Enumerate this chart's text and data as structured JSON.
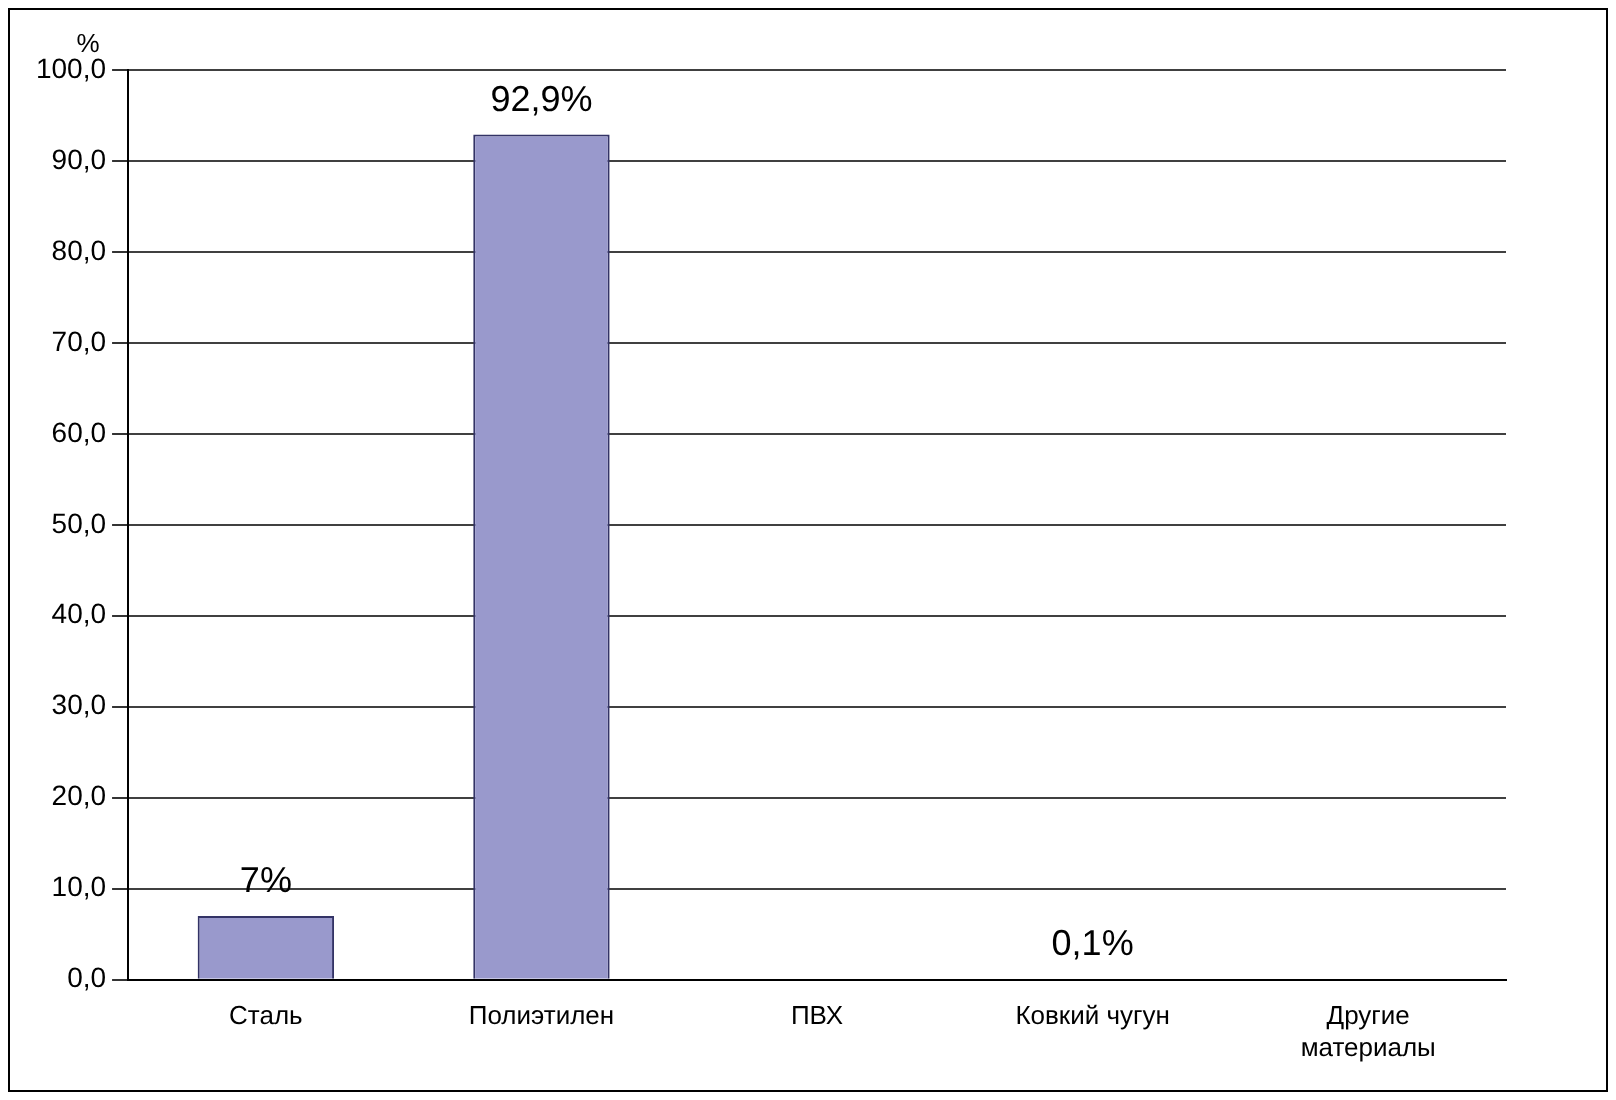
{
  "chart_data": {
    "type": "bar",
    "ylabel": "%",
    "categories": [
      "Сталь",
      "Полиэтилен",
      "ПВХ",
      "Ковкий чугун",
      "Другие материалы"
    ],
    "values": [
      7,
      92.9,
      0,
      0.1,
      0
    ],
    "value_labels": [
      "7%",
      "92,9%",
      null,
      "0,1%",
      null
    ],
    "color": "#9999cc",
    "ylim": [
      0,
      100
    ],
    "yticks": [
      {
        "value": 0,
        "label": "0,0"
      },
      {
        "value": 10,
        "label": "10,0"
      },
      {
        "value": 20,
        "label": "20,0"
      },
      {
        "value": 30,
        "label": "30,0"
      },
      {
        "value": 40,
        "label": "40,0"
      },
      {
        "value": 50,
        "label": "50,0"
      },
      {
        "value": 60,
        "label": "60,0"
      },
      {
        "value": 70,
        "label": "70,0"
      },
      {
        "value": 80,
        "label": "80,0"
      },
      {
        "value": 90,
        "label": "90,0"
      },
      {
        "value": 100,
        "label": "100,0"
      }
    ],
    "grid": "y"
  }
}
